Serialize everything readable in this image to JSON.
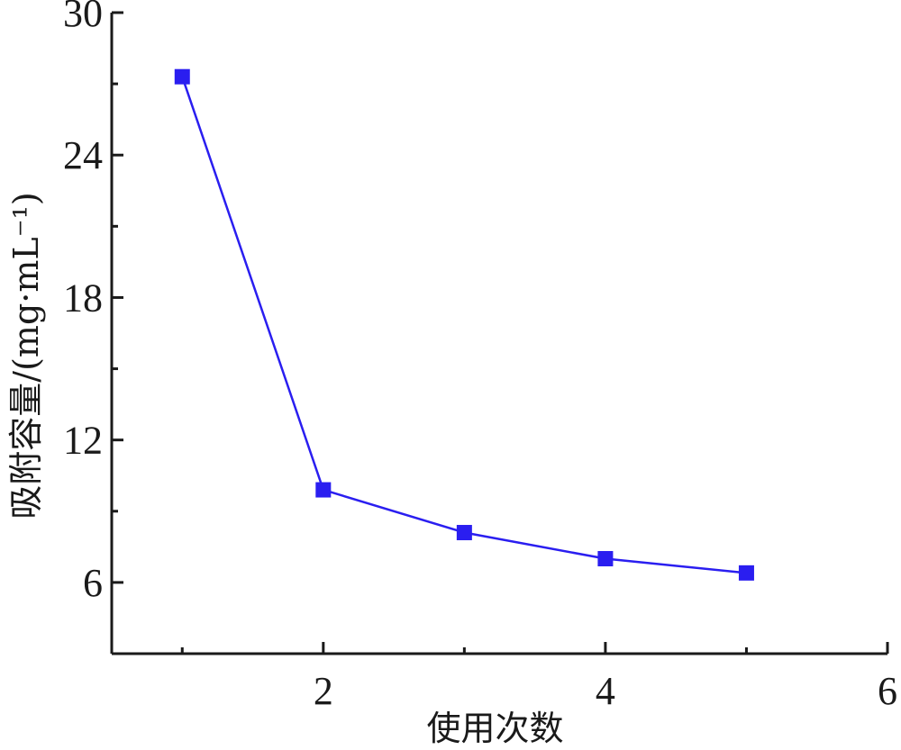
{
  "chart_data": {
    "type": "line",
    "title": "",
    "xlabel": "使用次数",
    "ylabel": "吸附容量/(mg·mL⁻¹)",
    "x": [
      1,
      2,
      3,
      4,
      5
    ],
    "series": [
      {
        "values": [
          27.3,
          9.9,
          8.1,
          7.0,
          6.4
        ],
        "color": "#2a1ef0",
        "marker": "square"
      }
    ],
    "xlim": [
      0.5,
      6
    ],
    "ylim": [
      3,
      30
    ],
    "xticks": [
      "2",
      "4",
      "6"
    ],
    "yticks": [
      "6",
      "12",
      "18",
      "24",
      "30"
    ],
    "grid": false
  }
}
